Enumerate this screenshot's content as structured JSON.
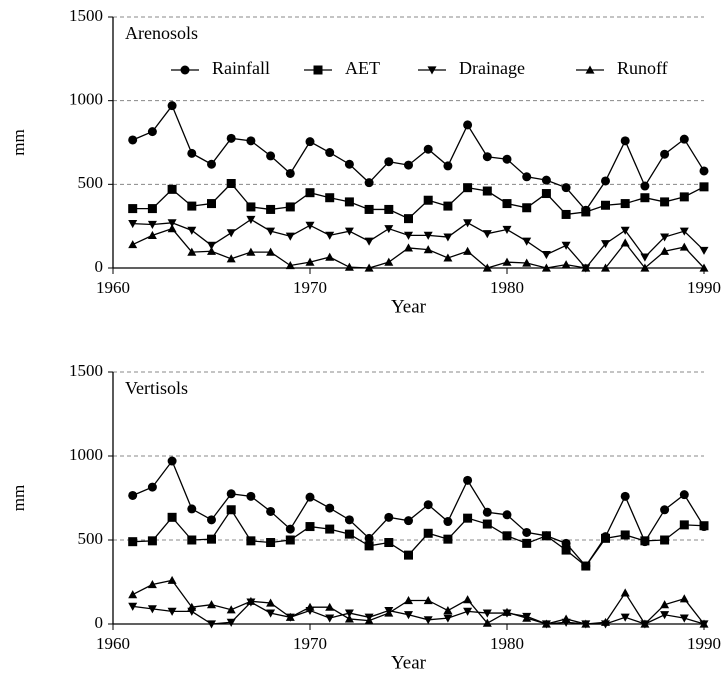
{
  "chart_data": [
    {
      "type": "line",
      "title": "Arenosols",
      "x_label": "Year",
      "y_label": "mm",
      "x": [
        1961,
        1962,
        1963,
        1964,
        1965,
        1966,
        1967,
        1968,
        1969,
        1970,
        1971,
        1972,
        1973,
        1974,
        1975,
        1976,
        1977,
        1978,
        1979,
        1980,
        1981,
        1982,
        1983,
        1984,
        1985,
        1986,
        1987,
        1988,
        1989,
        1990
      ],
      "xlim": [
        1960,
        1990
      ],
      "xticks": [
        1960,
        1970,
        1980,
        1990
      ],
      "ylim": [
        0,
        1500
      ],
      "yticks": [
        0,
        500,
        1000,
        1500
      ],
      "grid": true,
      "legend": "top",
      "series": [
        {
          "name": "Rainfall",
          "color": "#000000",
          "marker": "circle",
          "values": [
            765,
            815,
            970,
            685,
            620,
            775,
            760,
            670,
            565,
            755,
            690,
            620,
            510,
            635,
            615,
            710,
            610,
            855,
            665,
            650,
            545,
            525,
            480,
            345,
            520,
            760,
            490,
            680,
            770,
            580
          ]
        },
        {
          "name": "AET",
          "color": "#000000",
          "marker": "square",
          "values": [
            355,
            355,
            470,
            370,
            385,
            505,
            365,
            350,
            365,
            450,
            420,
            395,
            350,
            350,
            295,
            405,
            370,
            480,
            460,
            385,
            360,
            445,
            320,
            335,
            375,
            385,
            420,
            395,
            425,
            485
          ]
        },
        {
          "name": "Drainage",
          "color": "#000000",
          "marker": "triangle-down",
          "values": [
            265,
            260,
            270,
            225,
            135,
            210,
            290,
            220,
            190,
            255,
            195,
            220,
            160,
            235,
            195,
            195,
            185,
            270,
            205,
            230,
            160,
            80,
            135,
            0,
            145,
            225,
            65,
            185,
            220,
            105
          ]
        },
        {
          "name": "Runoff",
          "color": "#000000",
          "marker": "triangle-up",
          "values": [
            140,
            195,
            235,
            95,
            100,
            55,
            95,
            95,
            15,
            35,
            65,
            5,
            0,
            35,
            120,
            110,
            60,
            100,
            0,
            35,
            30,
            0,
            20,
            0,
            0,
            150,
            0,
            100,
            125,
            0
          ]
        }
      ]
    },
    {
      "type": "line",
      "title": "Vertisols",
      "x_label": "Year",
      "y_label": "mm",
      "x": [
        1961,
        1962,
        1963,
        1964,
        1965,
        1966,
        1967,
        1968,
        1969,
        1970,
        1971,
        1972,
        1973,
        1974,
        1975,
        1976,
        1977,
        1978,
        1979,
        1980,
        1981,
        1982,
        1983,
        1984,
        1985,
        1986,
        1987,
        1988,
        1989,
        1990
      ],
      "xlim": [
        1960,
        1990
      ],
      "xticks": [
        1960,
        1970,
        1980,
        1990
      ],
      "ylim": [
        0,
        1500
      ],
      "yticks": [
        0,
        500,
        1000,
        1500
      ],
      "grid": true,
      "series": [
        {
          "color": "#000000",
          "marker": "circle",
          "values": [
            765,
            815,
            970,
            685,
            620,
            775,
            760,
            670,
            565,
            755,
            690,
            620,
            510,
            635,
            615,
            710,
            610,
            855,
            665,
            650,
            545,
            525,
            480,
            345,
            520,
            760,
            490,
            680,
            770,
            580
          ]
        },
        {
          "color": "#000000",
          "marker": "square",
          "values": [
            490,
            495,
            635,
            500,
            505,
            680,
            495,
            485,
            500,
            580,
            565,
            535,
            465,
            485,
            410,
            540,
            505,
            630,
            595,
            525,
            480,
            525,
            440,
            345,
            510,
            530,
            495,
            500,
            590,
            585
          ]
        },
        {
          "color": "#000000",
          "marker": "triangle-down",
          "values": [
            105,
            90,
            75,
            75,
            0,
            10,
            130,
            65,
            40,
            80,
            35,
            65,
            40,
            80,
            55,
            25,
            35,
            75,
            65,
            65,
            45,
            0,
            10,
            0,
            0,
            40,
            0,
            55,
            35,
            0
          ]
        },
        {
          "color": "#000000",
          "marker": "triangle-up",
          "values": [
            175,
            235,
            260,
            100,
            115,
            85,
            135,
            125,
            40,
            100,
            100,
            30,
            20,
            65,
            140,
            140,
            80,
            145,
            5,
            70,
            35,
            0,
            30,
            0,
            10,
            185,
            0,
            115,
            150,
            0
          ]
        }
      ]
    }
  ]
}
